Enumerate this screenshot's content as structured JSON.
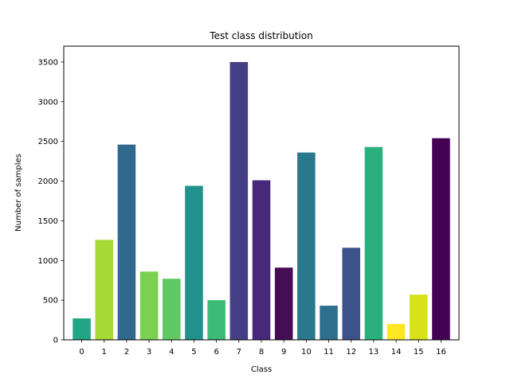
{
  "chart_data": {
    "type": "bar",
    "title": "Test class distribution",
    "xlabel": "Class",
    "ylabel": "Number of samples",
    "categories": [
      "0",
      "1",
      "2",
      "3",
      "4",
      "5",
      "6",
      "7",
      "8",
      "9",
      "10",
      "11",
      "12",
      "13",
      "14",
      "15",
      "16"
    ],
    "values": [
      270,
      1260,
      2460,
      860,
      770,
      1940,
      500,
      3500,
      2010,
      910,
      2360,
      430,
      1160,
      2430,
      200,
      570,
      2540
    ],
    "colors": [
      "#21a585",
      "#a5db36",
      "#31688e",
      "#7ad151",
      "#5ec962",
      "#21918c",
      "#3bbb75",
      "#433e85",
      "#482878",
      "#450d54",
      "#2a788e",
      "#2e6e8e",
      "#3b528b",
      "#2ab07f",
      "#fde725",
      "#d8e219",
      "#440154"
    ],
    "ylim": [
      0,
      3700
    ],
    "yticks": [
      0,
      500,
      1000,
      1500,
      2000,
      2500,
      3000,
      3500
    ],
    "grid": false,
    "legend": "none"
  }
}
